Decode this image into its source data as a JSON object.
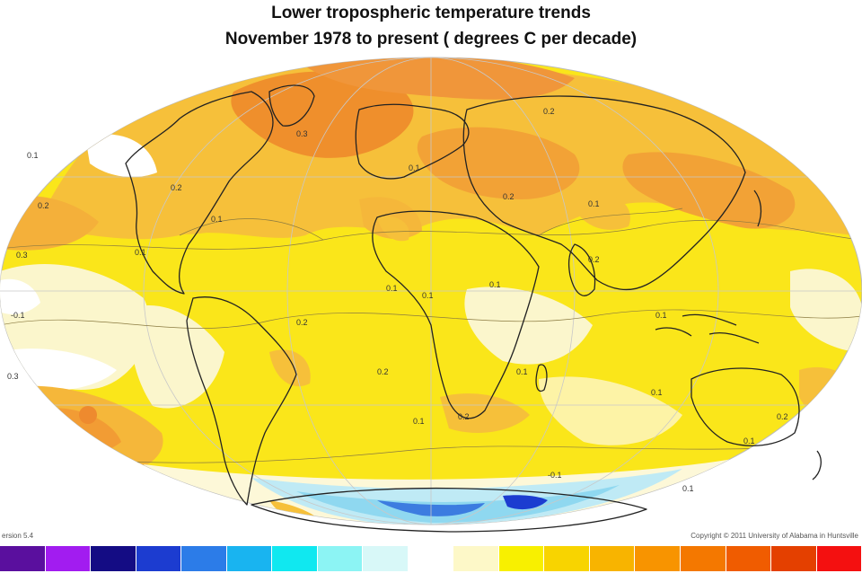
{
  "header": {
    "title_line1": "Lower tropospheric temperature trends",
    "title_line2": "November 1978 to present ( degrees C per decade)"
  },
  "footer": {
    "version": "ersion 5.4",
    "copyright": "Copyright © 2011 University of Alabama in Huntsville"
  },
  "map": {
    "projection": "mollweide",
    "land_outline_color": "#222222",
    "contour_labels": [
      "0.1",
      "0.2",
      "0.3",
      "0.2",
      "0.1",
      "-0.1",
      "0.1",
      "0.2",
      "0.3",
      "0.1",
      "0.2",
      "0.1",
      "0.2",
      "0.1",
      "0.1",
      "0.3",
      "0.2",
      "0.1",
      "0.2",
      "0.1",
      "0.1",
      "0.2",
      "0.1",
      "0.1",
      "0.1",
      "-0.1",
      "0.1",
      "0.2"
    ]
  },
  "colorbar": {
    "colors": [
      "#5a0f9e",
      "#a21cf0",
      "#140c84",
      "#1c3cd0",
      "#2c7ce8",
      "#19b4f0",
      "#10e8f0",
      "#8cf4f4",
      "#d8f8f8",
      "#ffffff",
      "#fdf8c8",
      "#f8f000",
      "#f8d400",
      "#f8b400",
      "#f89400",
      "#f47800",
      "#f05c00",
      "#e44000",
      "#f41010"
    ]
  }
}
